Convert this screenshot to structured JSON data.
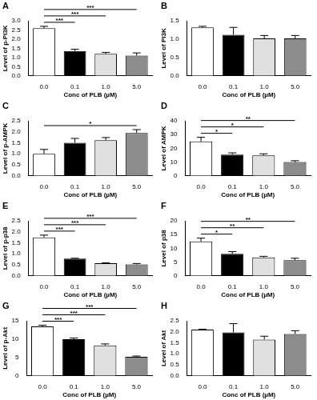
{
  "chart_data": [
    {
      "type": "bar",
      "panel": "A",
      "y_label": "Level of p-PI3K",
      "x_label": "Conc of PLB (µM)",
      "categories": [
        "0.0",
        "0.1",
        "1.0",
        "5.0"
      ],
      "values": [
        2.6,
        1.35,
        1.2,
        1.1
      ],
      "errors": [
        0.1,
        0.1,
        0.08,
        0.15
      ],
      "colors": [
        "#ffffff",
        "#000000",
        "#e0e0e0",
        "#8c8c8c"
      ],
      "ylim": [
        0,
        3
      ],
      "yticks": [
        {
          "value": 0,
          "label": "0.0"
        },
        0.5,
        {
          "value": 1,
          "label": "1.0"
        },
        1.5,
        {
          "value": 2,
          "label": "2.0"
        },
        2.5,
        {
          "value": 3,
          "label": "3.0"
        }
      ],
      "significance": [
        {
          "from": "0.0",
          "to": "0.1",
          "label": "***"
        },
        {
          "from": "0.0",
          "to": "1.0",
          "label": "***"
        },
        {
          "from": "0.0",
          "to": "5.0",
          "label": "***"
        }
      ],
      "grid": false
    },
    {
      "type": "bar",
      "panel": "B",
      "y_label": "Level of PI3K",
      "x_label": "Conc of PLB (µM)",
      "categories": [
        "0.0",
        "0.1",
        "1.0",
        "5.0"
      ],
      "values": [
        1.32,
        1.12,
        1.02,
        1.02
      ],
      "errors": [
        0.03,
        0.2,
        0.08,
        0.08
      ],
      "colors": [
        "#ffffff",
        "#000000",
        "#e0e0e0",
        "#8c8c8c"
      ],
      "ylim": [
        0,
        1.5
      ],
      "yticks": [
        {
          "value": 0,
          "label": "0.0"
        },
        0.5,
        {
          "value": 1,
          "label": "1.0"
        },
        1.5
      ],
      "significance": [],
      "grid": false
    },
    {
      "type": "bar",
      "panel": "C",
      "y_label": "Level of p-AMPK",
      "x_label": "Conc of PLB (µM)",
      "categories": [
        "0.0",
        "0.1",
        "1.0",
        "5.0"
      ],
      "values": [
        1.0,
        1.5,
        1.62,
        1.95
      ],
      "errors": [
        0.2,
        0.2,
        0.12,
        0.15
      ],
      "colors": [
        "#ffffff",
        "#000000",
        "#e0e0e0",
        "#8c8c8c"
      ],
      "ylim": [
        0,
        2.5
      ],
      "yticks": [
        {
          "value": 0,
          "label": "0.0"
        },
        0.5,
        {
          "value": 1,
          "label": "1.0"
        },
        1.5,
        {
          "value": 2,
          "label": "2.0"
        },
        2.5
      ],
      "significance": [
        {
          "from": "0.0",
          "to": "5.0",
          "label": "*"
        }
      ],
      "grid": false
    },
    {
      "type": "bar",
      "panel": "D",
      "y_label": "Level of AMPK",
      "x_label": "Conc of PLB (µM)",
      "categories": [
        "0.0",
        "0.1",
        "1.0",
        "5.0"
      ],
      "values": [
        25,
        15.5,
        14.8,
        10
      ],
      "errors": [
        3,
        1.2,
        1.2,
        1
      ],
      "colors": [
        "#ffffff",
        "#000000",
        "#e0e0e0",
        "#8c8c8c"
      ],
      "ylim": [
        0,
        40
      ],
      "yticks": [
        0,
        10,
        20,
        30,
        40
      ],
      "significance": [
        {
          "from": "0.0",
          "to": "0.1",
          "label": "*"
        },
        {
          "from": "0.0",
          "to": "1.0",
          "label": "*"
        },
        {
          "from": "0.0",
          "to": "5.0",
          "label": "**"
        }
      ],
      "grid": false
    },
    {
      "type": "bar",
      "panel": "E",
      "y_label": "Level of p-p38",
      "x_label": "Conc of PLB (µM)",
      "categories": [
        "0.0",
        "0.1",
        "1.0",
        "5.0"
      ],
      "values": [
        1.75,
        0.78,
        0.57,
        0.52
      ],
      "errors": [
        0.1,
        0.02,
        0.02,
        0.04
      ],
      "colors": [
        "#ffffff",
        "#000000",
        "#e0e0e0",
        "#8c8c8c"
      ],
      "ylim": [
        0,
        2.5
      ],
      "yticks": [
        {
          "value": 0,
          "label": "0.0"
        },
        0.5,
        {
          "value": 1,
          "label": "1.0"
        },
        1.5,
        {
          "value": 2,
          "label": "2.0"
        },
        2.5
      ],
      "significance": [
        {
          "from": "0.0",
          "to": "0.1",
          "label": "***"
        },
        {
          "from": "0.0",
          "to": "1.0",
          "label": "***"
        },
        {
          "from": "0.0",
          "to": "5.0",
          "label": "***"
        }
      ],
      "grid": false
    },
    {
      "type": "bar",
      "panel": "F",
      "y_label": "Level of p38",
      "x_label": "Conc of PLB (µM)",
      "categories": [
        "0.0",
        "0.1",
        "1.0",
        "5.0"
      ],
      "values": [
        12.5,
        8,
        6.7,
        5.7
      ],
      "errors": [
        1.2,
        0.8,
        0.4,
        0.7
      ],
      "colors": [
        "#ffffff",
        "#000000",
        "#e0e0e0",
        "#8c8c8c"
      ],
      "ylim": [
        0,
        20
      ],
      "yticks": [
        0,
        5,
        10,
        15,
        20
      ],
      "significance": [
        {
          "from": "0.0",
          "to": "0.1",
          "label": "*"
        },
        {
          "from": "0.0",
          "to": "1.0",
          "label": "**"
        },
        {
          "from": "0.0",
          "to": "5.0",
          "label": "**"
        }
      ],
      "grid": false
    },
    {
      "type": "bar",
      "panel": "G",
      "y_label": "Level of p-Akt",
      "x_label": "Conc of PLB (µM)",
      "categories": [
        "0.0",
        "0.1",
        "1.0",
        "5.0"
      ],
      "values": [
        13.5,
        10,
        8.3,
        5.2
      ],
      "errors": [
        0.3,
        0.3,
        0.4,
        0.2
      ],
      "colors": [
        "#ffffff",
        "#000000",
        "#e0e0e0",
        "#8c8c8c"
      ],
      "ylim": [
        0,
        15
      ],
      "yticks": [
        0,
        5,
        10,
        15
      ],
      "significance": [
        {
          "from": "0.0",
          "to": "0.1",
          "label": "***"
        },
        {
          "from": "0.0",
          "to": "1.0",
          "label": "***"
        },
        {
          "from": "0.0",
          "to": "5.0",
          "label": "***"
        }
      ],
      "grid": false
    },
    {
      "type": "bar",
      "panel": "H",
      "y_label": "Level of Akt",
      "x_label": "Conc of PLB (µM)",
      "categories": [
        "0.0",
        "0.1",
        "1.0",
        "5.0"
      ],
      "values": [
        2.1,
        1.97,
        1.65,
        1.9
      ],
      "errors": [
        0.02,
        0.4,
        0.15,
        0.15
      ],
      "colors": [
        "#ffffff",
        "#000000",
        "#e0e0e0",
        "#8c8c8c"
      ],
      "ylim": [
        0,
        2.5
      ],
      "yticks": [
        {
          "value": 0,
          "label": "0.0"
        },
        0.5,
        {
          "value": 1,
          "label": "1.0"
        },
        1.5,
        {
          "value": 2,
          "label": "2.0"
        },
        2.5
      ],
      "significance": [],
      "grid": false
    }
  ]
}
